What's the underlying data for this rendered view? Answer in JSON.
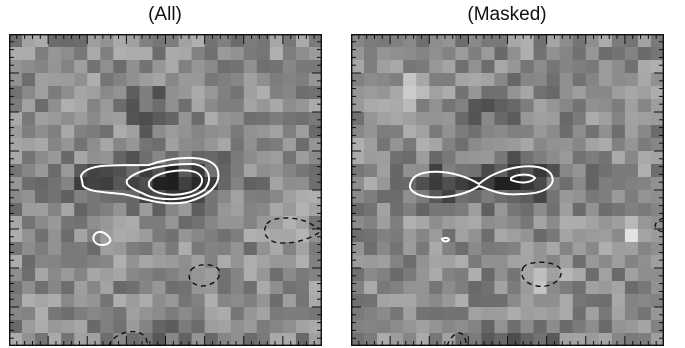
{
  "panels": [
    {
      "title": "(All)"
    },
    {
      "title": "(Masked)"
    }
  ],
  "colors": {
    "background": "#ffffff",
    "frame": "#111111",
    "positive_contour": "#ffffff",
    "negative_contour": "#111111"
  }
}
